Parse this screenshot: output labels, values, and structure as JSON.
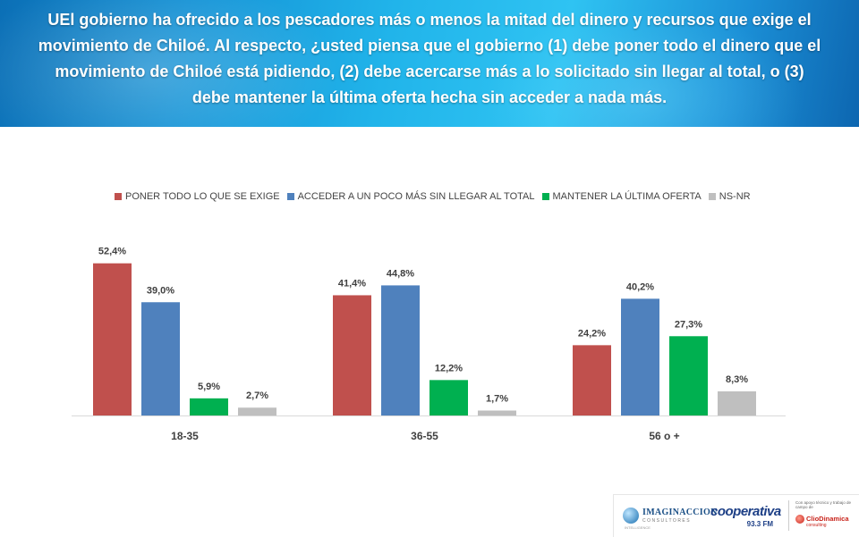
{
  "header": {
    "question": "UEl gobierno ha ofrecido a los pescadores más o menos la mitad del dinero y recursos que exige el movimiento de Chiloé. Al respecto, ¿usted piensa que el gobierno (1) debe poner todo el dinero que el movimiento de Chiloé está pidiendo, (2) debe acercarse más a lo solicitado sin llegar al total, o (3) debe mantener la última oferta hecha sin acceder a nada más."
  },
  "chart_data": {
    "type": "bar",
    "categories": [
      "18-35",
      "36-55",
      "56 o +"
    ],
    "series": [
      {
        "name": "PONER TODO LO QUE SE EXIGE",
        "color": "#c0504d",
        "values": [
          52.4,
          41.4,
          24.2
        ],
        "labels": [
          "52,4%",
          "41,4%",
          "24,2%"
        ]
      },
      {
        "name": "ACCEDER A UN POCO MÁS SIN LLEGAR AL TOTAL",
        "color": "#4f81bd",
        "values": [
          39.0,
          44.8,
          40.2
        ],
        "labels": [
          "39,0%",
          "44,8%",
          "40,2%"
        ]
      },
      {
        "name": "MANTENER LA ÚLTIMA OFERTA",
        "color": "#00b050",
        "values": [
          5.9,
          12.2,
          27.3
        ],
        "labels": [
          "5,9%",
          "12,2%",
          "27,3%"
        ]
      },
      {
        "name": "NS-NR",
        "color": "#bfbfbf",
        "values": [
          2.7,
          1.7,
          8.3
        ],
        "labels": [
          "2,7%",
          "1,7%",
          "8,3%"
        ]
      }
    ],
    "ylim": [
      0,
      55
    ],
    "legend_position": "top",
    "grid": false
  },
  "logos": {
    "imaginaccion": {
      "name": "IMAGINACCION",
      "sub": "CONSULTORES",
      "tiny": "INTELLIGENCE"
    },
    "cooperativa": {
      "name": "cooperativa",
      "freq": "93.3 FM"
    },
    "cliodinamica": {
      "intro": "Con apoyo técnico y trabajo de campo de",
      "name": "ClioDinamica",
      "sub": "consulting"
    }
  }
}
